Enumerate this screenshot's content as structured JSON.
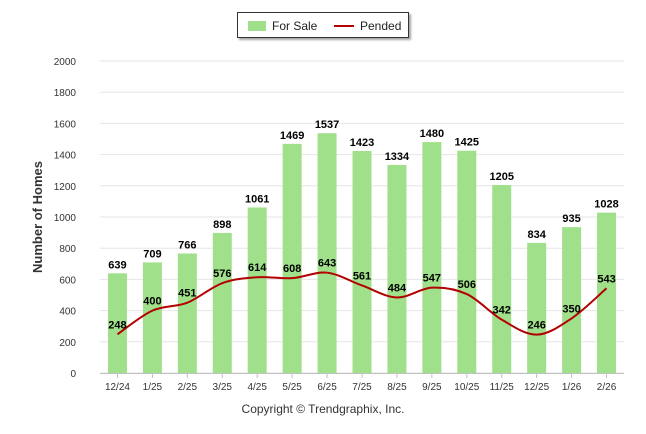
{
  "chart_data": {
    "type": "bar",
    "title": "",
    "xlabel": "",
    "ylabel": "Number of Homes",
    "ylim": [
      0,
      2000
    ],
    "yticks": [
      0,
      200,
      400,
      600,
      800,
      1000,
      1200,
      1400,
      1600,
      1800,
      2000
    ],
    "grid": true,
    "legend_position": "top-center",
    "categories": [
      "12/24",
      "1/25",
      "2/25",
      "3/25",
      "4/25",
      "5/25",
      "6/25",
      "7/25",
      "8/25",
      "9/25",
      "10/25",
      "11/25",
      "12/25",
      "1/26",
      "2/26"
    ],
    "series": [
      {
        "name": "For Sale",
        "kind": "bar",
        "color": "#a0e08a",
        "values": [
          639,
          709,
          766,
          898,
          1061,
          1469,
          1537,
          1423,
          1334,
          1480,
          1425,
          1205,
          834,
          935,
          1028
        ]
      },
      {
        "name": "Pended",
        "kind": "line",
        "color": "#b30000",
        "values": [
          248,
          400,
          451,
          576,
          614,
          608,
          643,
          561,
          484,
          547,
          506,
          342,
          246,
          350,
          543
        ]
      }
    ]
  },
  "legend": {
    "for_sale": "For Sale",
    "pended": "Pended"
  },
  "footer": {
    "copyright": "Copyright © Trendgraphix, Inc."
  }
}
